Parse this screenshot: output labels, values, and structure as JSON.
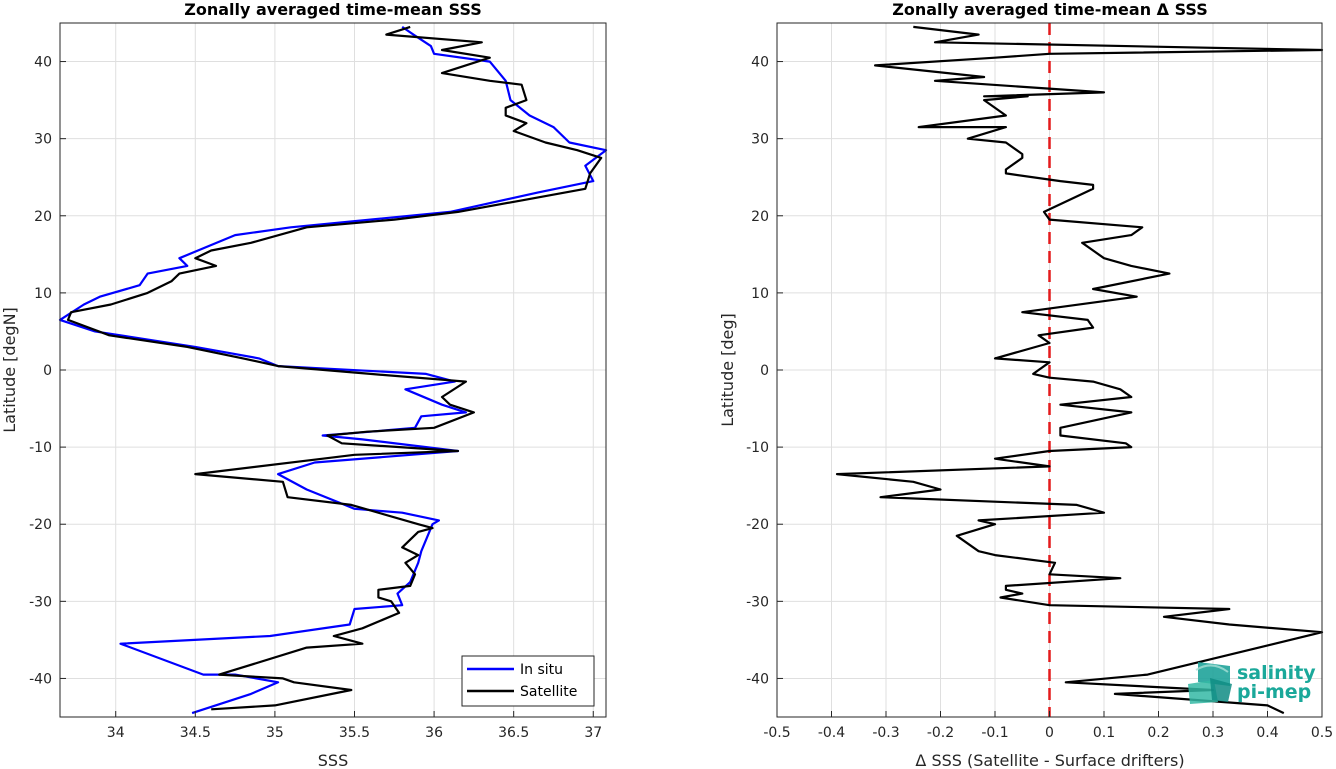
{
  "chart_data": [
    {
      "type": "line",
      "title": "Zonally averaged time-mean SSS",
      "xlabel": "SSS",
      "ylabel": "Latitude [degN]",
      "xlim": [
        33.65,
        37.08
      ],
      "ylim": [
        -45,
        45
      ],
      "xticks": [
        34,
        34.5,
        35,
        35.5,
        36,
        36.5,
        37
      ],
      "xtick_labels": [
        "34",
        "34.5",
        "35",
        "35.5",
        "36",
        "36.5",
        "37"
      ],
      "yticks": [
        -40,
        -30,
        -20,
        -10,
        0,
        10,
        20,
        30,
        40
      ],
      "ytick_labels": [
        "-40",
        "-30",
        "-20",
        "-10",
        "0",
        "10",
        "20",
        "30",
        "40"
      ],
      "grid": true,
      "legend": "bottom-right",
      "series": [
        {
          "name": "In situ",
          "color": "#0000ff",
          "points": [
            [
              34.48,
              -44.5
            ],
            [
              34.85,
              -42.0
            ],
            [
              35.02,
              -40.5
            ],
            [
              34.75,
              -39.5
            ],
            [
              34.55,
              -39.5
            ],
            [
              34.03,
              -35.5
            ],
            [
              34.97,
              -34.5
            ],
            [
              35.47,
              -33.0
            ],
            [
              35.5,
              -31.0
            ],
            [
              35.8,
              -30.5
            ],
            [
              35.77,
              -29.0
            ],
            [
              35.85,
              -27.5
            ],
            [
              35.9,
              -25.0
            ],
            [
              35.92,
              -23.5
            ],
            [
              35.97,
              -21.0
            ],
            [
              35.99,
              -20.0
            ],
            [
              36.03,
              -19.5
            ],
            [
              35.8,
              -18.5
            ],
            [
              35.5,
              -18.0
            ],
            [
              35.2,
              -15.5
            ],
            [
              35.02,
              -13.5
            ],
            [
              35.25,
              -12.0
            ],
            [
              36.15,
              -10.5
            ],
            [
              35.55,
              -9.0
            ],
            [
              35.3,
              -8.5
            ],
            [
              35.6,
              -8.0
            ],
            [
              35.88,
              -7.5
            ],
            [
              35.92,
              -6.0
            ],
            [
              36.2,
              -5.5
            ],
            [
              36.05,
              -4.5
            ],
            [
              35.82,
              -2.5
            ],
            [
              36.13,
              -1.5
            ],
            [
              35.95,
              -0.5
            ],
            [
              35.02,
              0.5
            ],
            [
              34.9,
              1.5
            ],
            [
              34.5,
              3.0
            ],
            [
              33.87,
              5.0
            ],
            [
              33.65,
              6.5
            ],
            [
              33.8,
              8.5
            ],
            [
              33.9,
              9.5
            ],
            [
              34.15,
              11.0
            ],
            [
              34.2,
              12.5
            ],
            [
              34.45,
              13.5
            ],
            [
              34.4,
              14.5
            ],
            [
              34.75,
              17.5
            ],
            [
              35.1,
              18.5
            ],
            [
              35.6,
              19.5
            ],
            [
              36.1,
              20.5
            ],
            [
              36.65,
              23.0
            ],
            [
              37.0,
              24.5
            ],
            [
              36.95,
              26.5
            ],
            [
              37.08,
              28.5
            ],
            [
              36.85,
              29.5
            ],
            [
              36.75,
              31.5
            ],
            [
              36.6,
              33.0
            ],
            [
              36.48,
              35.0
            ],
            [
              36.45,
              37.5
            ],
            [
              36.35,
              40.0
            ],
            [
              36.0,
              41.0
            ],
            [
              35.98,
              42.0
            ],
            [
              35.87,
              43.5
            ],
            [
              35.8,
              44.5
            ]
          ]
        },
        {
          "name": "Satellite",
          "color": "#000000",
          "points": [
            [
              34.6,
              -44.0
            ],
            [
              35.0,
              -43.5
            ],
            [
              35.48,
              -41.5
            ],
            [
              35.12,
              -40.5
            ],
            [
              35.05,
              -40.0
            ],
            [
              34.65,
              -39.5
            ],
            [
              35.2,
              -36.0
            ],
            [
              35.55,
              -35.5
            ],
            [
              35.37,
              -34.5
            ],
            [
              35.55,
              -33.5
            ],
            [
              35.78,
              -31.5
            ],
            [
              35.73,
              -30.0
            ],
            [
              35.65,
              -29.5
            ],
            [
              35.65,
              -28.5
            ],
            [
              35.85,
              -28.0
            ],
            [
              35.88,
              -26.5
            ],
            [
              35.82,
              -25.0
            ],
            [
              35.9,
              -24.0
            ],
            [
              35.8,
              -23.0
            ],
            [
              35.9,
              -21.0
            ],
            [
              35.99,
              -20.5
            ],
            [
              35.9,
              -20.0
            ],
            [
              35.48,
              -17.5
            ],
            [
              35.08,
              -16.5
            ],
            [
              35.05,
              -14.5
            ],
            [
              34.5,
              -13.5
            ],
            [
              35.3,
              -11.5
            ],
            [
              35.5,
              -11.0
            ],
            [
              36.15,
              -10.5
            ],
            [
              35.42,
              -9.5
            ],
            [
              35.33,
              -8.5
            ],
            [
              35.58,
              -8.0
            ],
            [
              36.0,
              -7.5
            ],
            [
              36.25,
              -5.5
            ],
            [
              36.1,
              -4.5
            ],
            [
              36.05,
              -3.5
            ],
            [
              36.2,
              -1.5
            ],
            [
              35.6,
              -0.5
            ],
            [
              35.02,
              0.5
            ],
            [
              34.8,
              1.5
            ],
            [
              34.45,
              3.0
            ],
            [
              33.96,
              4.5
            ],
            [
              33.7,
              6.5
            ],
            [
              33.72,
              7.5
            ],
            [
              33.97,
              8.5
            ],
            [
              34.2,
              10.0
            ],
            [
              34.35,
              11.5
            ],
            [
              34.4,
              12.5
            ],
            [
              34.63,
              13.5
            ],
            [
              34.5,
              14.5
            ],
            [
              34.6,
              15.5
            ],
            [
              34.85,
              16.5
            ],
            [
              35.2,
              18.5
            ],
            [
              35.75,
              19.5
            ],
            [
              36.15,
              20.5
            ],
            [
              36.55,
              22.0
            ],
            [
              36.95,
              23.5
            ],
            [
              36.98,
              25.5
            ],
            [
              37.05,
              27.5
            ],
            [
              36.9,
              28.5
            ],
            [
              36.7,
              29.5
            ],
            [
              36.5,
              31.0
            ],
            [
              36.58,
              32.0
            ],
            [
              36.45,
              33.0
            ],
            [
              36.45,
              34.0
            ],
            [
              36.58,
              35.0
            ],
            [
              36.55,
              37.0
            ],
            [
              36.35,
              37.5
            ],
            [
              36.05,
              38.5
            ],
            [
              36.35,
              40.5
            ],
            [
              36.05,
              41.5
            ],
            [
              36.3,
              42.5
            ],
            [
              35.7,
              43.5
            ],
            [
              35.85,
              44.5
            ]
          ]
        }
      ]
    },
    {
      "type": "line",
      "title": "Zonally averaged time-mean Δ SSS",
      "xlabel": "Δ SSS (Satellite - Surface drifters)",
      "ylabel": "Latitude [deg]",
      "xlim": [
        -0.5,
        0.5
      ],
      "ylim": [
        -45,
        45
      ],
      "xticks": [
        -0.5,
        -0.4,
        -0.3,
        -0.2,
        -0.1,
        0,
        0.1,
        0.2,
        0.3,
        0.4,
        0.5
      ],
      "xtick_labels": [
        "-0.5",
        "-0.4",
        "-0.3",
        "-0.2",
        "-0.1",
        "0",
        "0.1",
        "0.2",
        "0.3",
        "0.4",
        "0.5"
      ],
      "yticks": [
        -40,
        -30,
        -20,
        -10,
        0,
        10,
        20,
        30,
        40
      ],
      "ytick_labels": [
        "-40",
        "-30",
        "-20",
        "-10",
        "0",
        "10",
        "20",
        "30",
        "40"
      ],
      "grid": true,
      "reference_line": {
        "x": 0,
        "color": "#e41a1c",
        "style": "dashed"
      },
      "series": [
        {
          "color": "#000000",
          "points": [
            [
              0.43,
              -44.5
            ],
            [
              0.4,
              -43.5
            ],
            [
              0.12,
              -42.0
            ],
            [
              0.3,
              -41.5
            ],
            [
              0.03,
              -40.5
            ],
            [
              0.18,
              -39.5
            ],
            [
              0.5,
              -34.0
            ],
            [
              0.33,
              -33.0
            ],
            [
              0.21,
              -32.0
            ],
            [
              0.33,
              -31.0
            ],
            [
              0.0,
              -30.5
            ],
            [
              -0.09,
              -29.5
            ],
            [
              -0.05,
              -29.0
            ],
            [
              -0.08,
              -28.5
            ],
            [
              -0.08,
              -28.0
            ],
            [
              0.13,
              -27.0
            ],
            [
              0.0,
              -26.5
            ],
            [
              0.01,
              -25.0
            ],
            [
              -0.1,
              -24.0
            ],
            [
              -0.13,
              -23.5
            ],
            [
              -0.17,
              -21.5
            ],
            [
              -0.1,
              -20.0
            ],
            [
              -0.13,
              -19.5
            ],
            [
              0.1,
              -18.5
            ],
            [
              0.05,
              -17.5
            ],
            [
              -0.31,
              -16.5
            ],
            [
              -0.2,
              -15.5
            ],
            [
              -0.25,
              -14.5
            ],
            [
              -0.39,
              -13.5
            ],
            [
              0.0,
              -12.5
            ],
            [
              -0.1,
              -11.5
            ],
            [
              0.0,
              -10.5
            ],
            [
              0.15,
              -10.0
            ],
            [
              0.14,
              -9.5
            ],
            [
              0.02,
              -8.5
            ],
            [
              0.02,
              -7.5
            ],
            [
              0.15,
              -5.5
            ],
            [
              0.02,
              -4.5
            ],
            [
              0.15,
              -3.5
            ],
            [
              0.13,
              -2.5
            ],
            [
              0.08,
              -1.5
            ],
            [
              0.0,
              -1.0
            ],
            [
              -0.03,
              -0.5
            ],
            [
              -0.02,
              0.0
            ],
            [
              0.0,
              1.0
            ],
            [
              -0.1,
              1.5
            ],
            [
              0.0,
              3.5
            ],
            [
              -0.02,
              4.5
            ],
            [
              0.08,
              5.5
            ],
            [
              0.07,
              6.5
            ],
            [
              -0.05,
              7.5
            ],
            [
              0.16,
              9.5
            ],
            [
              0.08,
              10.5
            ],
            [
              0.22,
              12.5
            ],
            [
              0.15,
              13.5
            ],
            [
              0.1,
              14.5
            ],
            [
              0.08,
              15.5
            ],
            [
              0.06,
              16.5
            ],
            [
              0.15,
              17.5
            ],
            [
              0.17,
              18.5
            ],
            [
              0.0,
              19.5
            ],
            [
              -0.01,
              20.5
            ],
            [
              0.08,
              23.5
            ],
            [
              0.08,
              24.0
            ],
            [
              0.02,
              24.5
            ],
            [
              -0.08,
              25.5
            ],
            [
              -0.08,
              26.0
            ],
            [
              -0.05,
              27.5
            ],
            [
              -0.05,
              28.0
            ],
            [
              -0.08,
              29.5
            ],
            [
              -0.15,
              30.0
            ],
            [
              -0.08,
              31.5
            ],
            [
              -0.24,
              31.5
            ],
            [
              -0.08,
              33.0
            ],
            [
              -0.12,
              35.0
            ],
            [
              -0.04,
              35.5
            ],
            [
              -0.12,
              35.5
            ],
            [
              0.1,
              36.0
            ],
            [
              -0.21,
              37.5
            ],
            [
              -0.12,
              38.0
            ],
            [
              -0.32,
              39.5
            ],
            [
              -0.1,
              40.5
            ],
            [
              0.0,
              41.0
            ],
            [
              0.5,
              41.5
            ],
            [
              -0.21,
              42.5
            ],
            [
              -0.13,
              43.5
            ],
            [
              -0.25,
              44.5
            ]
          ]
        }
      ]
    }
  ],
  "legend": {
    "items": [
      "In situ",
      "Satellite"
    ]
  },
  "logo": {
    "line1": "salinity",
    "line2": "pi-mep"
  }
}
